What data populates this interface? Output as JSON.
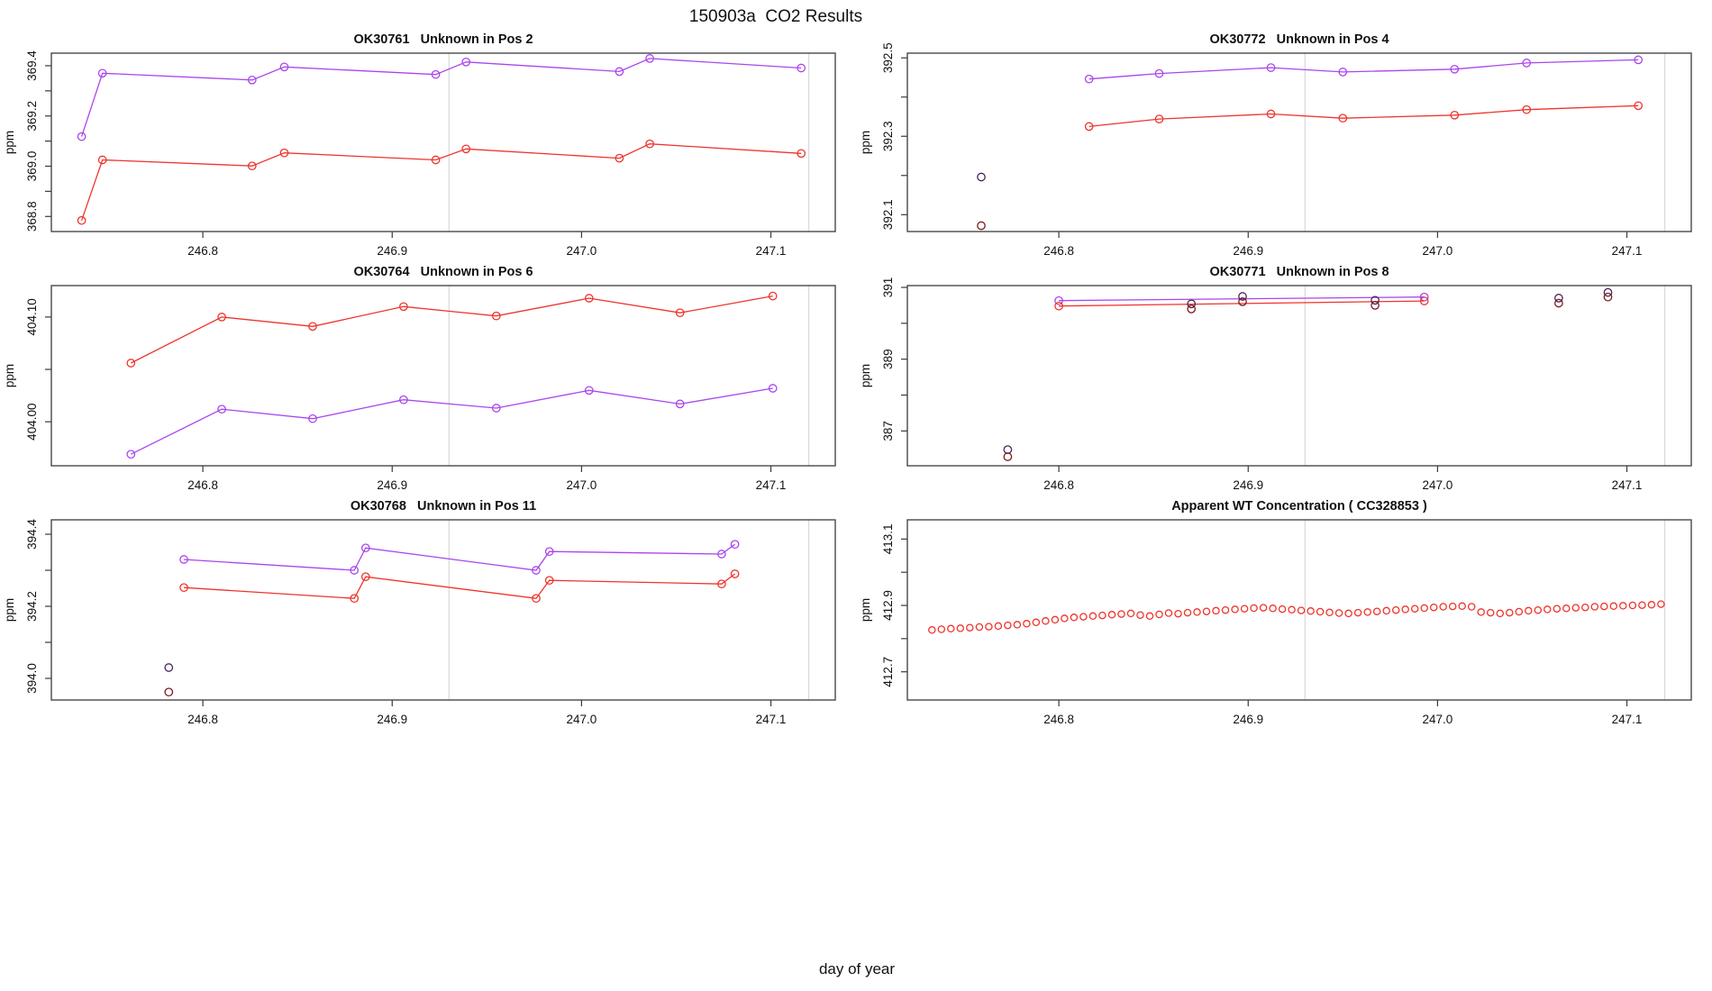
{
  "figure": {
    "title": "150903a  CO2 Results",
    "xlabel": "day of year",
    "colors": {
      "red": "#ee342c",
      "purple": "#a946ec",
      "dark_red": "#7b1a1c",
      "dark_purple": "#452457",
      "grid": "#d8d8d8",
      "axis": "#3a3a3a",
      "text": "#111111"
    }
  },
  "chart_data": [
    {
      "type": "line",
      "title": "OK30761   Unknown in Pos 2",
      "ylabel": "ppm",
      "row": 0,
      "col": 0,
      "xlim": [
        246.72,
        247.134
      ],
      "ylim": [
        368.74,
        369.45
      ],
      "xticks": [
        {
          "v": 246.8,
          "label": "246.8"
        },
        {
          "v": 246.9,
          "label": "246.9"
        },
        {
          "v": 247.0,
          "label": "247.0"
        },
        {
          "v": 247.1,
          "label": "247.1"
        }
      ],
      "yticks": [
        {
          "v": 368.8,
          "label": "368.8"
        },
        {
          "v": 368.9,
          "label": ""
        },
        {
          "v": 369.0,
          "label": "369.0"
        },
        {
          "v": 369.1,
          "label": ""
        },
        {
          "v": 369.2,
          "label": "369.2"
        },
        {
          "v": 369.3,
          "label": ""
        },
        {
          "v": 369.4,
          "label": "369.4"
        }
      ],
      "vlines": [
        246.93,
        247.12
      ],
      "series": [
        {
          "name": "purple-trace",
          "color": "purple",
          "line": true,
          "marker_r": 4.2,
          "x": [
            246.736,
            246.747,
            246.826,
            246.843,
            246.923,
            246.939,
            247.02,
            247.036,
            247.116
          ],
          "y": [
            369.118,
            369.37,
            369.343,
            369.395,
            369.365,
            369.415,
            369.377,
            369.429,
            369.391
          ]
        },
        {
          "name": "red-trace",
          "color": "red",
          "line": true,
          "marker_r": 4.2,
          "x": [
            246.736,
            246.747,
            246.826,
            246.843,
            246.923,
            246.939,
            247.02,
            247.036,
            247.116
          ],
          "y": [
            368.784,
            369.025,
            369.001,
            369.053,
            369.025,
            369.069,
            369.032,
            369.089,
            369.051
          ]
        }
      ]
    },
    {
      "type": "line",
      "title": "OK30772   Unknown in Pos 4",
      "ylabel": "ppm",
      "row": 0,
      "col": 1,
      "xlim": [
        246.72,
        247.134
      ],
      "ylim": [
        392.057,
        392.512
      ],
      "xticks": [
        {
          "v": 246.8,
          "label": "246.8"
        },
        {
          "v": 246.9,
          "label": "246.9"
        },
        {
          "v": 247.0,
          "label": "247.0"
        },
        {
          "v": 247.1,
          "label": "247.1"
        }
      ],
      "yticks": [
        {
          "v": 392.1,
          "label": "392.1"
        },
        {
          "v": 392.2,
          "label": ""
        },
        {
          "v": 392.3,
          "label": "392.3"
        },
        {
          "v": 392.4,
          "label": ""
        },
        {
          "v": 392.5,
          "label": "392.5"
        }
      ],
      "vlines": [
        246.93,
        247.12
      ],
      "series": [
        {
          "name": "purple-trace",
          "color": "purple",
          "line": true,
          "marker_r": 4.2,
          "x": [
            246.816,
            246.853,
            246.912,
            246.95,
            247.009,
            247.047,
            247.106
          ],
          "y": [
            392.446,
            392.46,
            392.475,
            392.464,
            392.471,
            392.487,
            392.495
          ]
        },
        {
          "name": "red-trace",
          "color": "red",
          "line": true,
          "marker_r": 4.2,
          "x": [
            246.816,
            246.853,
            246.912,
            246.95,
            247.009,
            247.047,
            247.106
          ],
          "y": [
            392.325,
            392.344,
            392.357,
            392.346,
            392.354,
            392.368,
            392.378
          ]
        },
        {
          "name": "purple-outlier",
          "color": "dark_purple",
          "line": false,
          "marker_r": 4.2,
          "x": [
            246.759
          ],
          "y": [
            392.196
          ]
        },
        {
          "name": "red-outlier",
          "color": "dark_red",
          "line": false,
          "marker_r": 4.2,
          "x": [
            246.759
          ],
          "y": [
            392.072
          ]
        }
      ]
    },
    {
      "type": "line",
      "title": "OK30764   Unknown in Pos 6",
      "ylabel": "ppm",
      "row": 1,
      "col": 0,
      "xlim": [
        246.72,
        247.134
      ],
      "ylim": [
        403.958,
        404.13
      ],
      "xticks": [
        {
          "v": 246.8,
          "label": "246.8"
        },
        {
          "v": 246.9,
          "label": "246.9"
        },
        {
          "v": 247.0,
          "label": "247.0"
        },
        {
          "v": 247.1,
          "label": "247.1"
        }
      ],
      "yticks": [
        {
          "v": 404.0,
          "label": "404.00"
        },
        {
          "v": 404.05,
          "label": ""
        },
        {
          "v": 404.1,
          "label": "404.10"
        }
      ],
      "vlines": [
        246.93,
        247.12
      ],
      "series": [
        {
          "name": "red-trace",
          "color": "red",
          "line": true,
          "marker_r": 4.2,
          "x": [
            246.762,
            246.81,
            246.858,
            246.906,
            246.955,
            247.004,
            247.052,
            247.101
          ],
          "y": [
            404.056,
            404.1,
            404.091,
            404.11,
            404.101,
            404.118,
            404.104,
            404.12
          ]
        },
        {
          "name": "purple-trace",
          "color": "purple",
          "line": true,
          "marker_r": 4.2,
          "x": [
            246.762,
            246.81,
            246.858,
            246.906,
            246.955,
            247.004,
            247.052,
            247.101
          ],
          "y": [
            403.969,
            404.012,
            404.003,
            404.021,
            404.013,
            404.03,
            404.017,
            404.032
          ]
        }
      ]
    },
    {
      "type": "line",
      "title": "OK30771   Unknown in Pos 8",
      "ylabel": "ppm",
      "row": 1,
      "col": 1,
      "xlim": [
        246.72,
        247.134
      ],
      "ylim": [
        386.03,
        391.05
      ],
      "xticks": [
        {
          "v": 246.8,
          "label": "246.8"
        },
        {
          "v": 246.9,
          "label": "246.9"
        },
        {
          "v": 247.0,
          "label": "247.0"
        },
        {
          "v": 247.1,
          "label": "247.1"
        }
      ],
      "yticks": [
        {
          "v": 387,
          "label": "387"
        },
        {
          "v": 388,
          "label": ""
        },
        {
          "v": 389,
          "label": "389"
        },
        {
          "v": 390,
          "label": ""
        },
        {
          "v": 391,
          "label": "391"
        }
      ],
      "vlines": [
        246.93,
        247.12
      ],
      "series": [
        {
          "name": "purple-trace",
          "color": "purple",
          "line": true,
          "marker_r": 4.2,
          "x": [
            246.8,
            246.993
          ],
          "y": [
            390.63,
            390.73
          ]
        },
        {
          "name": "red-trace",
          "color": "red",
          "line": true,
          "marker_r": 4.2,
          "x": [
            246.8,
            246.993
          ],
          "y": [
            390.48,
            390.62
          ]
        },
        {
          "name": "purple-points",
          "color": "dark_purple",
          "line": false,
          "marker_r": 4.2,
          "x": [
            246.87,
            246.897,
            246.967,
            247.064,
            247.09
          ],
          "y": [
            390.54,
            390.75,
            390.64,
            390.7,
            390.86
          ]
        },
        {
          "name": "red-points",
          "color": "dark_red",
          "line": false,
          "marker_r": 4.2,
          "x": [
            246.87,
            246.897,
            246.967,
            247.064,
            247.09
          ],
          "y": [
            390.4,
            390.6,
            390.5,
            390.56,
            390.73
          ]
        },
        {
          "name": "purple-outlier",
          "color": "dark_purple",
          "line": false,
          "marker_r": 4.2,
          "x": [
            246.773
          ],
          "y": [
            386.48
          ]
        },
        {
          "name": "red-outlier",
          "color": "dark_red",
          "line": false,
          "marker_r": 4.2,
          "x": [
            246.773
          ],
          "y": [
            386.28
          ]
        }
      ]
    },
    {
      "type": "line",
      "title": "OK30768   Unknown in Pos 11",
      "ylabel": "ppm",
      "row": 2,
      "col": 0,
      "xlim": [
        246.72,
        247.134
      ],
      "ylim": [
        393.94,
        394.44
      ],
      "xticks": [
        {
          "v": 246.8,
          "label": "246.8"
        },
        {
          "v": 246.9,
          "label": "246.9"
        },
        {
          "v": 247.0,
          "label": "247.0"
        },
        {
          "v": 247.1,
          "label": "247.1"
        }
      ],
      "yticks": [
        {
          "v": 394.0,
          "label": "394.0"
        },
        {
          "v": 394.1,
          "label": ""
        },
        {
          "v": 394.2,
          "label": "394.2"
        },
        {
          "v": 394.3,
          "label": ""
        },
        {
          "v": 394.4,
          "label": "394.4"
        }
      ],
      "vlines": [
        246.93,
        247.12
      ],
      "series": [
        {
          "name": "purple-trace",
          "color": "purple",
          "line": true,
          "marker_r": 4.2,
          "x": [
            246.79,
            246.88,
            246.886,
            246.976,
            246.983,
            247.074,
            247.081
          ],
          "y": [
            394.33,
            394.3,
            394.362,
            394.3,
            394.352,
            394.345,
            394.372
          ]
        },
        {
          "name": "red-trace",
          "color": "red",
          "line": true,
          "marker_r": 4.2,
          "x": [
            246.79,
            246.88,
            246.886,
            246.976,
            246.983,
            247.074,
            247.081
          ],
          "y": [
            394.252,
            394.222,
            394.282,
            394.222,
            394.272,
            394.262,
            394.29
          ]
        },
        {
          "name": "purple-outlier",
          "color": "dark_purple",
          "line": false,
          "marker_r": 4.2,
          "x": [
            246.782
          ],
          "y": [
            394.03
          ]
        },
        {
          "name": "red-outlier",
          "color": "dark_red",
          "line": false,
          "marker_r": 4.2,
          "x": [
            246.782
          ],
          "y": [
            393.962
          ]
        }
      ]
    },
    {
      "type": "scatter",
      "title": "Apparent WT Concentration ( CC328853 )",
      "ylabel": "ppm",
      "row": 2,
      "col": 1,
      "xlim": [
        246.72,
        247.134
      ],
      "ylim": [
        412.615,
        413.158
      ],
      "xticks": [
        {
          "v": 246.8,
          "label": "246.8"
        },
        {
          "v": 246.9,
          "label": "246.9"
        },
        {
          "v": 247.0,
          "label": "247.0"
        },
        {
          "v": 247.1,
          "label": "247.1"
        }
      ],
      "yticks": [
        {
          "v": 412.7,
          "label": "412.7"
        },
        {
          "v": 412.8,
          "label": ""
        },
        {
          "v": 412.9,
          "label": "412.9"
        },
        {
          "v": 413.0,
          "label": ""
        },
        {
          "v": 413.1,
          "label": "413.1"
        }
      ],
      "vlines": [
        246.93,
        247.12
      ],
      "series": [
        {
          "name": "wt-concentration",
          "color": "red",
          "line": false,
          "marker_r": 3.6,
          "x": [
            246.733,
            246.738,
            246.743,
            246.748,
            246.753,
            246.758,
            246.763,
            246.768,
            246.773,
            246.778,
            246.783,
            246.788,
            246.793,
            246.798,
            246.803,
            246.808,
            246.813,
            246.818,
            246.823,
            246.828,
            246.833,
            246.838,
            246.843,
            246.848,
            246.853,
            246.858,
            246.863,
            246.868,
            246.873,
            246.878,
            246.883,
            246.888,
            246.893,
            246.898,
            246.903,
            246.908,
            246.913,
            246.918,
            246.923,
            246.928,
            246.933,
            246.938,
            246.943,
            246.948,
            246.953,
            246.958,
            246.963,
            246.968,
            246.973,
            246.978,
            246.983,
            246.988,
            246.993,
            246.998,
            247.003,
            247.008,
            247.013,
            247.018,
            247.023,
            247.028,
            247.033,
            247.038,
            247.043,
            247.048,
            247.053,
            247.058,
            247.063,
            247.068,
            247.073,
            247.078,
            247.083,
            247.088,
            247.093,
            247.098,
            247.103,
            247.108,
            247.113,
            247.118
          ],
          "y": [
            412.826,
            412.828,
            412.83,
            412.831,
            412.833,
            412.835,
            412.836,
            412.838,
            412.84,
            412.842,
            412.845,
            412.849,
            412.853,
            412.857,
            412.861,
            412.864,
            412.866,
            412.868,
            412.87,
            412.872,
            412.874,
            412.876,
            412.871,
            412.868,
            412.873,
            412.877,
            412.875,
            412.878,
            412.88,
            412.882,
            412.884,
            412.886,
            412.888,
            412.89,
            412.892,
            412.893,
            412.891,
            412.889,
            412.887,
            412.885,
            412.883,
            412.881,
            412.879,
            412.877,
            412.876,
            412.878,
            412.88,
            412.882,
            412.884,
            412.886,
            412.888,
            412.89,
            412.892,
            412.894,
            412.896,
            412.897,
            412.898,
            412.896,
            412.88,
            412.878,
            412.876,
            412.878,
            412.881,
            412.884,
            412.886,
            412.888,
            412.89,
            412.891,
            412.893,
            412.894,
            412.896,
            412.897,
            412.898,
            412.899,
            412.9,
            412.901,
            412.902,
            412.904
          ]
        }
      ]
    }
  ]
}
